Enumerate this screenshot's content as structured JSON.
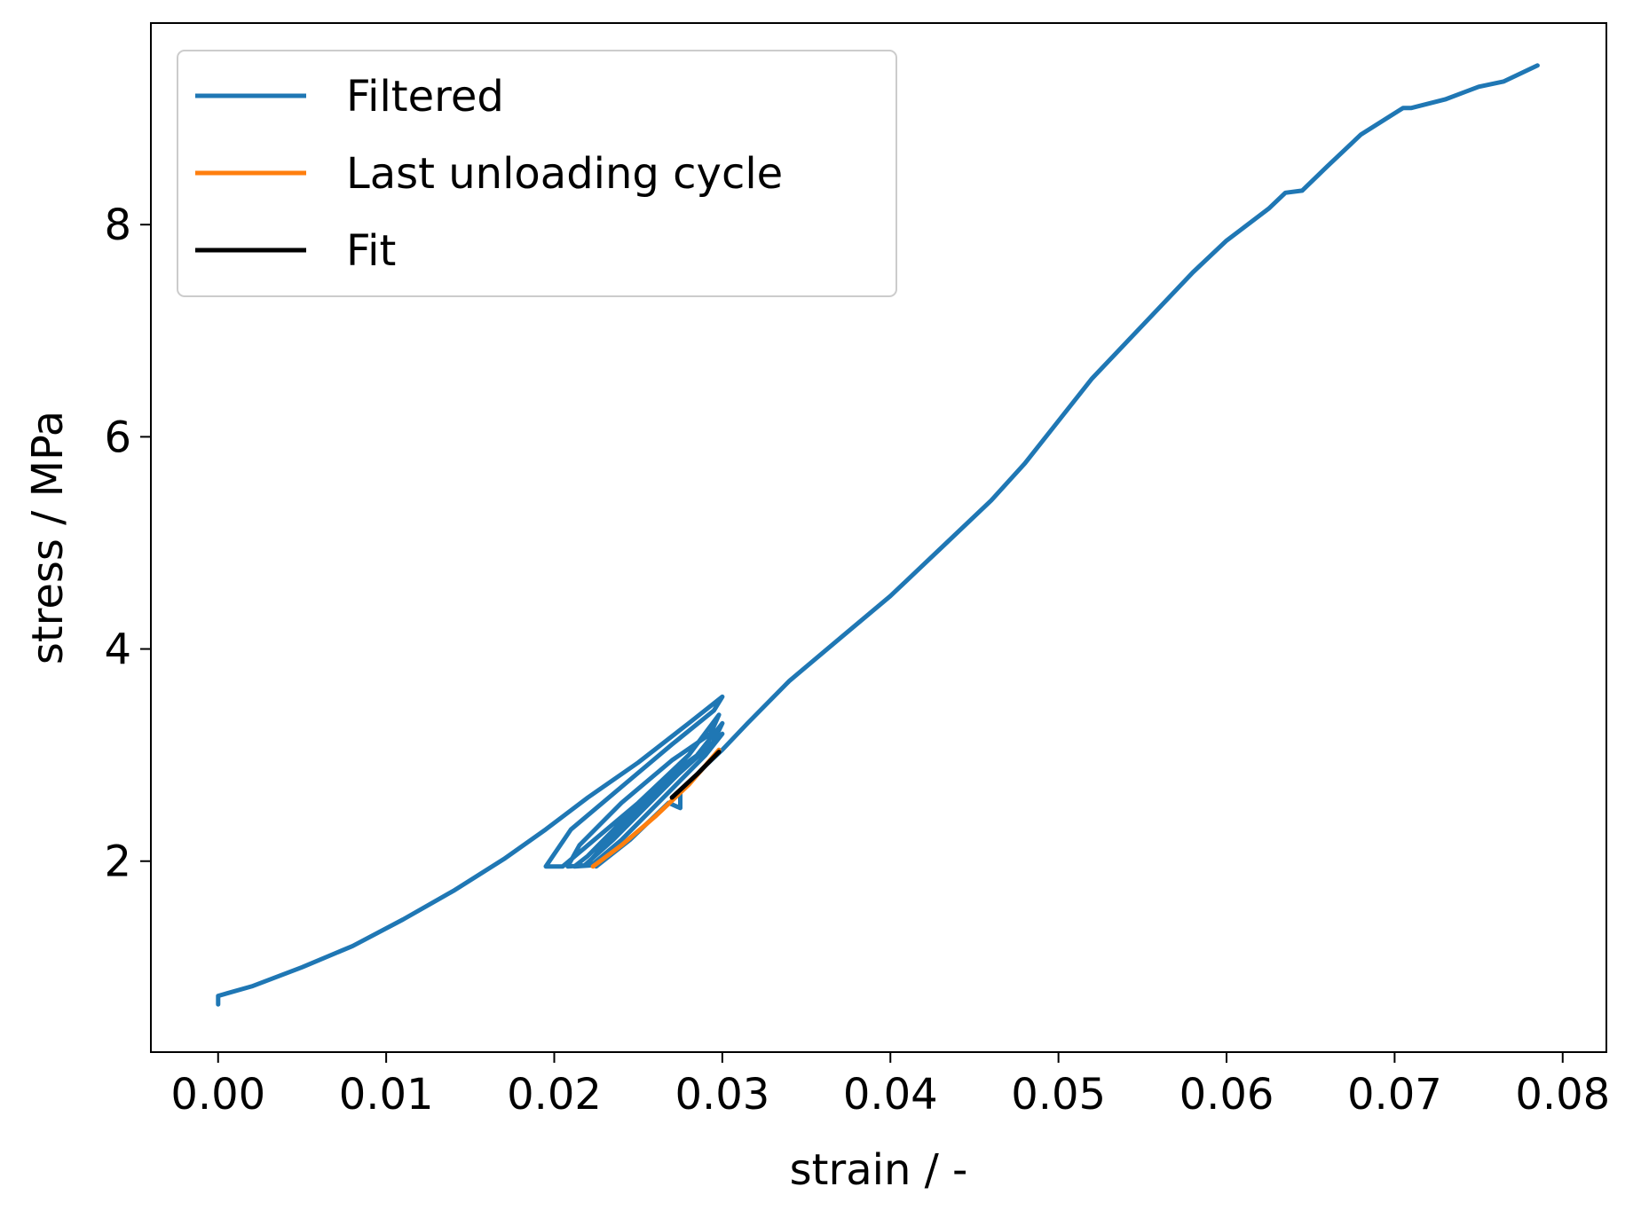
{
  "chart_data": {
    "type": "line",
    "title": "",
    "xlabel": "strain / -",
    "ylabel": "stress / MPa",
    "xlim": [
      -0.004,
      0.0826
    ],
    "ylim": [
      0.2,
      9.9
    ],
    "xticks": [
      {
        "value": 0.0,
        "label": "0.00"
      },
      {
        "value": 0.01,
        "label": "0.01"
      },
      {
        "value": 0.02,
        "label": "0.02"
      },
      {
        "value": 0.03,
        "label": "0.03"
      },
      {
        "value": 0.04,
        "label": "0.04"
      },
      {
        "value": 0.05,
        "label": "0.05"
      },
      {
        "value": 0.06,
        "label": "0.06"
      },
      {
        "value": 0.07,
        "label": "0.07"
      },
      {
        "value": 0.08,
        "label": "0.08"
      }
    ],
    "yticks": [
      {
        "value": 2,
        "label": "2"
      },
      {
        "value": 4,
        "label": "4"
      },
      {
        "value": 6,
        "label": "6"
      },
      {
        "value": 8,
        "label": "8"
      }
    ],
    "grid": false,
    "legend_position": "top-left",
    "series": [
      {
        "name": "Filtered",
        "color": "#1f77b4",
        "points": [
          [
            0.0,
            0.65
          ],
          [
            0.0,
            0.73
          ],
          [
            0.002,
            0.82
          ],
          [
            0.005,
            1.0
          ],
          [
            0.008,
            1.2
          ],
          [
            0.011,
            1.45
          ],
          [
            0.014,
            1.72
          ],
          [
            0.017,
            2.02
          ],
          [
            0.0195,
            2.3
          ],
          [
            0.022,
            2.6
          ],
          [
            0.025,
            2.93
          ],
          [
            0.028,
            3.3
          ],
          [
            0.03,
            3.55
          ],
          [
            0.0295,
            3.42
          ],
          [
            0.027,
            3.1
          ],
          [
            0.024,
            2.7
          ],
          [
            0.021,
            2.3
          ],
          [
            0.0195,
            1.95
          ],
          [
            0.0205,
            1.95
          ],
          [
            0.022,
            2.15
          ],
          [
            0.025,
            2.55
          ],
          [
            0.028,
            3.0
          ],
          [
            0.0298,
            3.38
          ],
          [
            0.0293,
            3.2
          ],
          [
            0.027,
            2.95
          ],
          [
            0.024,
            2.55
          ],
          [
            0.0215,
            2.15
          ],
          [
            0.0208,
            1.95
          ],
          [
            0.0218,
            1.96
          ],
          [
            0.0235,
            2.2
          ],
          [
            0.026,
            2.6
          ],
          [
            0.0285,
            3.0
          ],
          [
            0.03,
            3.3
          ],
          [
            0.0294,
            3.1
          ],
          [
            0.0272,
            2.85
          ],
          [
            0.0245,
            2.45
          ],
          [
            0.022,
            2.05
          ],
          [
            0.0212,
            1.95
          ],
          [
            0.0222,
            1.96
          ],
          [
            0.024,
            2.2
          ],
          [
            0.0265,
            2.6
          ],
          [
            0.029,
            3.0
          ],
          [
            0.03,
            3.2
          ],
          [
            0.0285,
            2.98
          ],
          [
            0.0262,
            2.65
          ],
          [
            0.0235,
            2.25
          ],
          [
            0.022,
            1.98
          ],
          [
            0.0225,
            1.95
          ],
          [
            0.0245,
            2.2
          ],
          [
            0.0268,
            2.55
          ],
          [
            0.0275,
            2.5
          ],
          [
            0.0275,
            2.65
          ],
          [
            0.029,
            2.9
          ],
          [
            0.03,
            3.05
          ],
          [
            0.0315,
            3.3
          ],
          [
            0.034,
            3.7
          ],
          [
            0.037,
            4.1
          ],
          [
            0.04,
            4.5
          ],
          [
            0.043,
            4.95
          ],
          [
            0.046,
            5.4
          ],
          [
            0.048,
            5.75
          ],
          [
            0.05,
            6.15
          ],
          [
            0.052,
            6.55
          ],
          [
            0.055,
            7.05
          ],
          [
            0.058,
            7.55
          ],
          [
            0.06,
            7.85
          ],
          [
            0.0625,
            8.15
          ],
          [
            0.0635,
            8.3
          ],
          [
            0.0645,
            8.32
          ],
          [
            0.066,
            8.55
          ],
          [
            0.068,
            8.85
          ],
          [
            0.0705,
            9.1
          ],
          [
            0.071,
            9.1
          ],
          [
            0.073,
            9.18
          ],
          [
            0.075,
            9.3
          ],
          [
            0.0765,
            9.35
          ],
          [
            0.0785,
            9.5
          ]
        ]
      },
      {
        "name": "Last unloading cycle",
        "color": "#ff7f0e",
        "points": [
          [
            0.0223,
            1.95
          ],
          [
            0.024,
            2.15
          ],
          [
            0.026,
            2.42
          ],
          [
            0.028,
            2.72
          ],
          [
            0.0298,
            3.05
          ]
        ]
      },
      {
        "name": "Fit",
        "color": "#000000",
        "points": [
          [
            0.027,
            2.6
          ],
          [
            0.0285,
            2.82
          ],
          [
            0.0298,
            3.03
          ]
        ]
      }
    ]
  }
}
